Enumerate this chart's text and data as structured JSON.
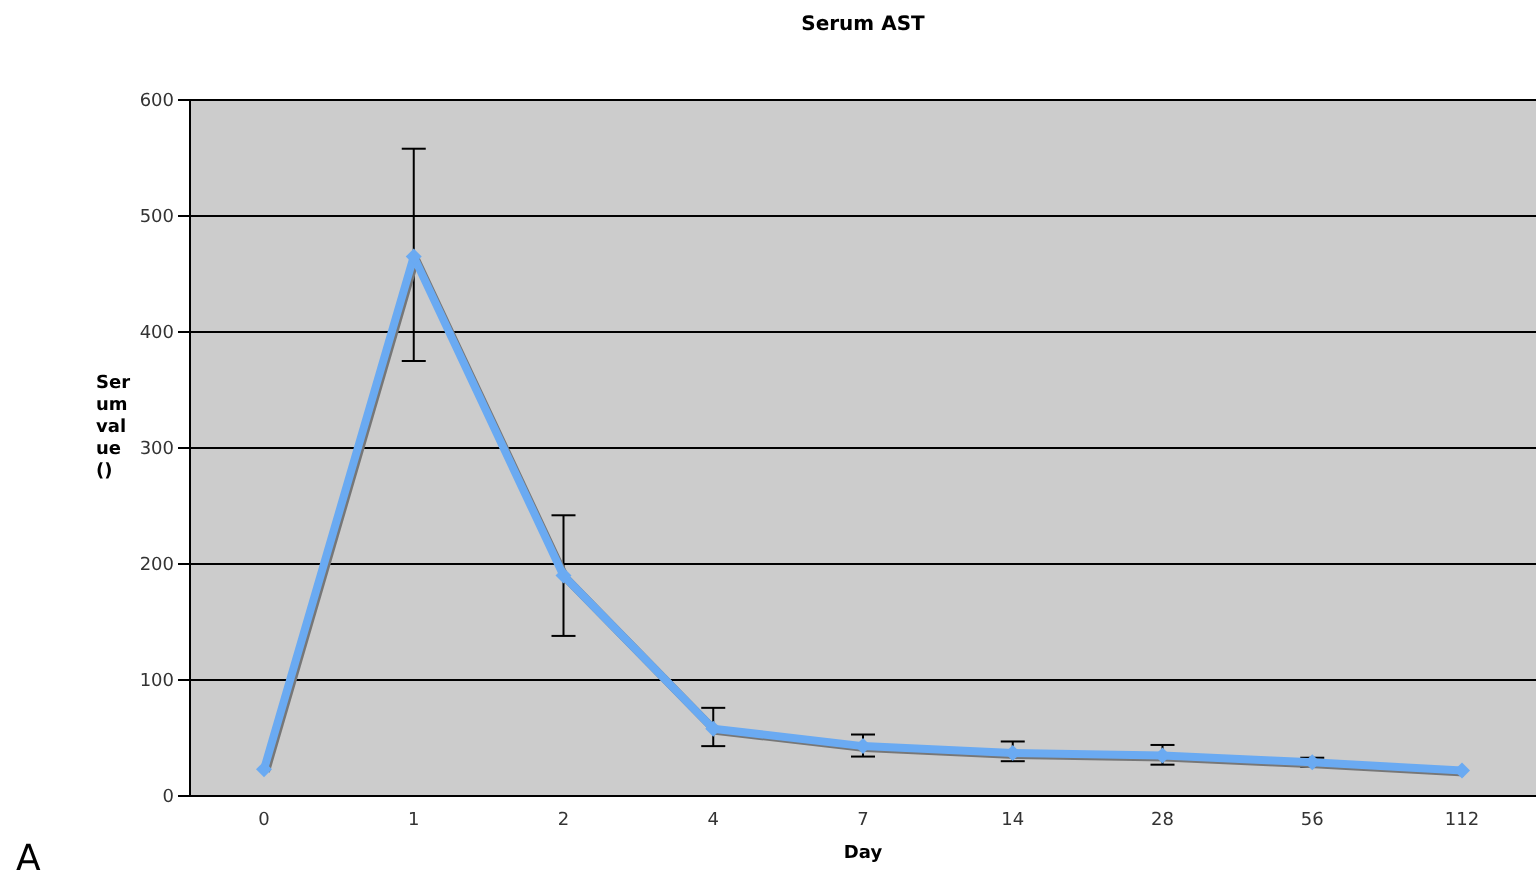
{
  "chart_data": {
    "type": "line",
    "title": "Serum AST",
    "xlabel": "Day",
    "ylabel": "Serum value ()",
    "categories": [
      "0",
      "1",
      "2",
      "4",
      "7",
      "14",
      "28",
      "56",
      "112"
    ],
    "series": [
      {
        "color": "#6aaaf2",
        "values": [
          23,
          465,
          190,
          58,
          43,
          37,
          35,
          29,
          22
        ],
        "errors": [
          null,
          [
            375,
            558
          ],
          [
            138,
            242
          ],
          [
            43,
            76
          ],
          [
            34,
            53
          ],
          [
            30,
            47
          ],
          [
            27,
            44
          ],
          [
            25,
            33
          ],
          null
        ]
      }
    ],
    "ylim": [
      0,
      600
    ],
    "yticks": [
      0,
      100,
      200,
      300,
      400,
      500,
      600
    ],
    "grid": "y",
    "legend": false,
    "marker": "diamond",
    "line_style": "solid",
    "annotations": [
      "A"
    ]
  }
}
